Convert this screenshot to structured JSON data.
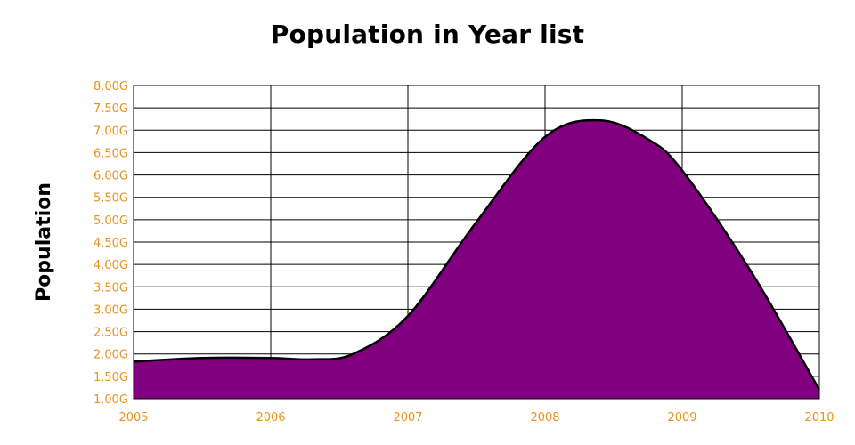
{
  "chart_data": {
    "type": "area",
    "title": "Population in Year list",
    "xlabel": "",
    "ylabel": "Population",
    "x": [
      2005,
      2006,
      2007,
      2008,
      2009,
      2010
    ],
    "xlim": [
      2005,
      2010
    ],
    "ylim": [
      1.0,
      8.0
    ],
    "x_tick_labels": [
      "2005",
      "2006",
      "2007",
      "2008",
      "2009",
      "2010"
    ],
    "y_tick_labels": [
      "1.00G",
      "1.50G",
      "2.00G",
      "2.50G",
      "3.00G",
      "3.50G",
      "4.00G",
      "4.50G",
      "5.00G",
      "5.50G",
      "6.00G",
      "6.50G",
      "7.00G",
      "7.50G",
      "8.00G"
    ],
    "y_ticks": [
      1.0,
      1.5,
      2.0,
      2.5,
      3.0,
      3.5,
      4.0,
      4.5,
      5.0,
      5.5,
      6.0,
      6.5,
      7.0,
      7.5,
      8.0
    ],
    "series": [
      {
        "points": [
          [
            2005.0,
            1.83
          ],
          [
            2005.5,
            1.91
          ],
          [
            2006.0,
            1.91
          ],
          [
            2006.3,
            1.88
          ],
          [
            2006.6,
            2.0
          ],
          [
            2007.0,
            2.85
          ],
          [
            2007.5,
            4.95
          ],
          [
            2008.0,
            6.85
          ],
          [
            2008.4,
            7.22
          ],
          [
            2008.75,
            6.8
          ],
          [
            2009.0,
            6.1
          ],
          [
            2009.5,
            3.85
          ],
          [
            2010.0,
            1.2
          ]
        ],
        "color": "#800080"
      }
    ],
    "grid": true,
    "legend": "none"
  },
  "colors": {
    "fill": "#800080",
    "outline": "#000000",
    "tick_text": "#e8921c",
    "grid": "#000000"
  }
}
